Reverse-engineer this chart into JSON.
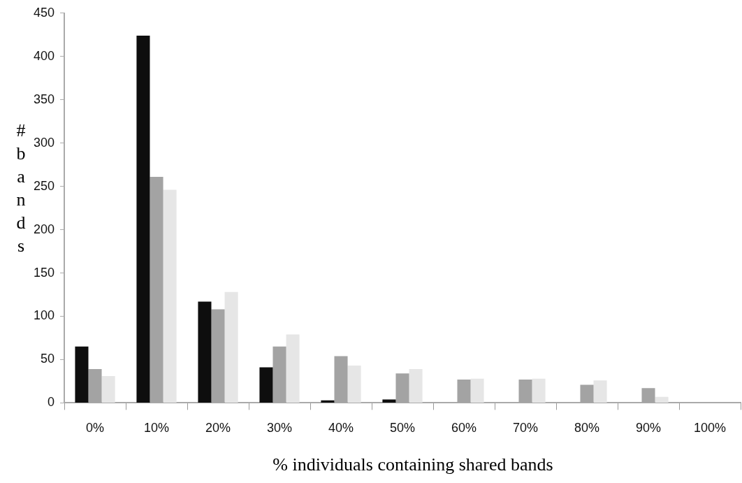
{
  "chart_data": {
    "type": "bar",
    "xlabel": "% individuals containing shared bands",
    "ylabel": "# bands",
    "categories": [
      "0%",
      "10%",
      "20%",
      "30%",
      "40%",
      "50%",
      "60%",
      "70%",
      "80%",
      "90%",
      "100%"
    ],
    "series": [
      {
        "color": "#0e0e0e",
        "values": [
          65,
          424,
          117,
          41,
          3,
          4,
          0,
          0,
          0,
          0,
          0
        ]
      },
      {
        "color": "#a3a3a3",
        "values": [
          39,
          261,
          108,
          65,
          54,
          34,
          27,
          27,
          21,
          17,
          0
        ]
      },
      {
        "color": "#e6e6e6",
        "values": [
          31,
          246,
          128,
          79,
          43,
          39,
          28,
          28,
          26,
          7,
          0
        ]
      }
    ],
    "ylim": [
      0,
      450
    ],
    "yticks": [
      0,
      50,
      100,
      150,
      200,
      250,
      300,
      350,
      400,
      450
    ],
    "grid": false,
    "legend": false
  }
}
